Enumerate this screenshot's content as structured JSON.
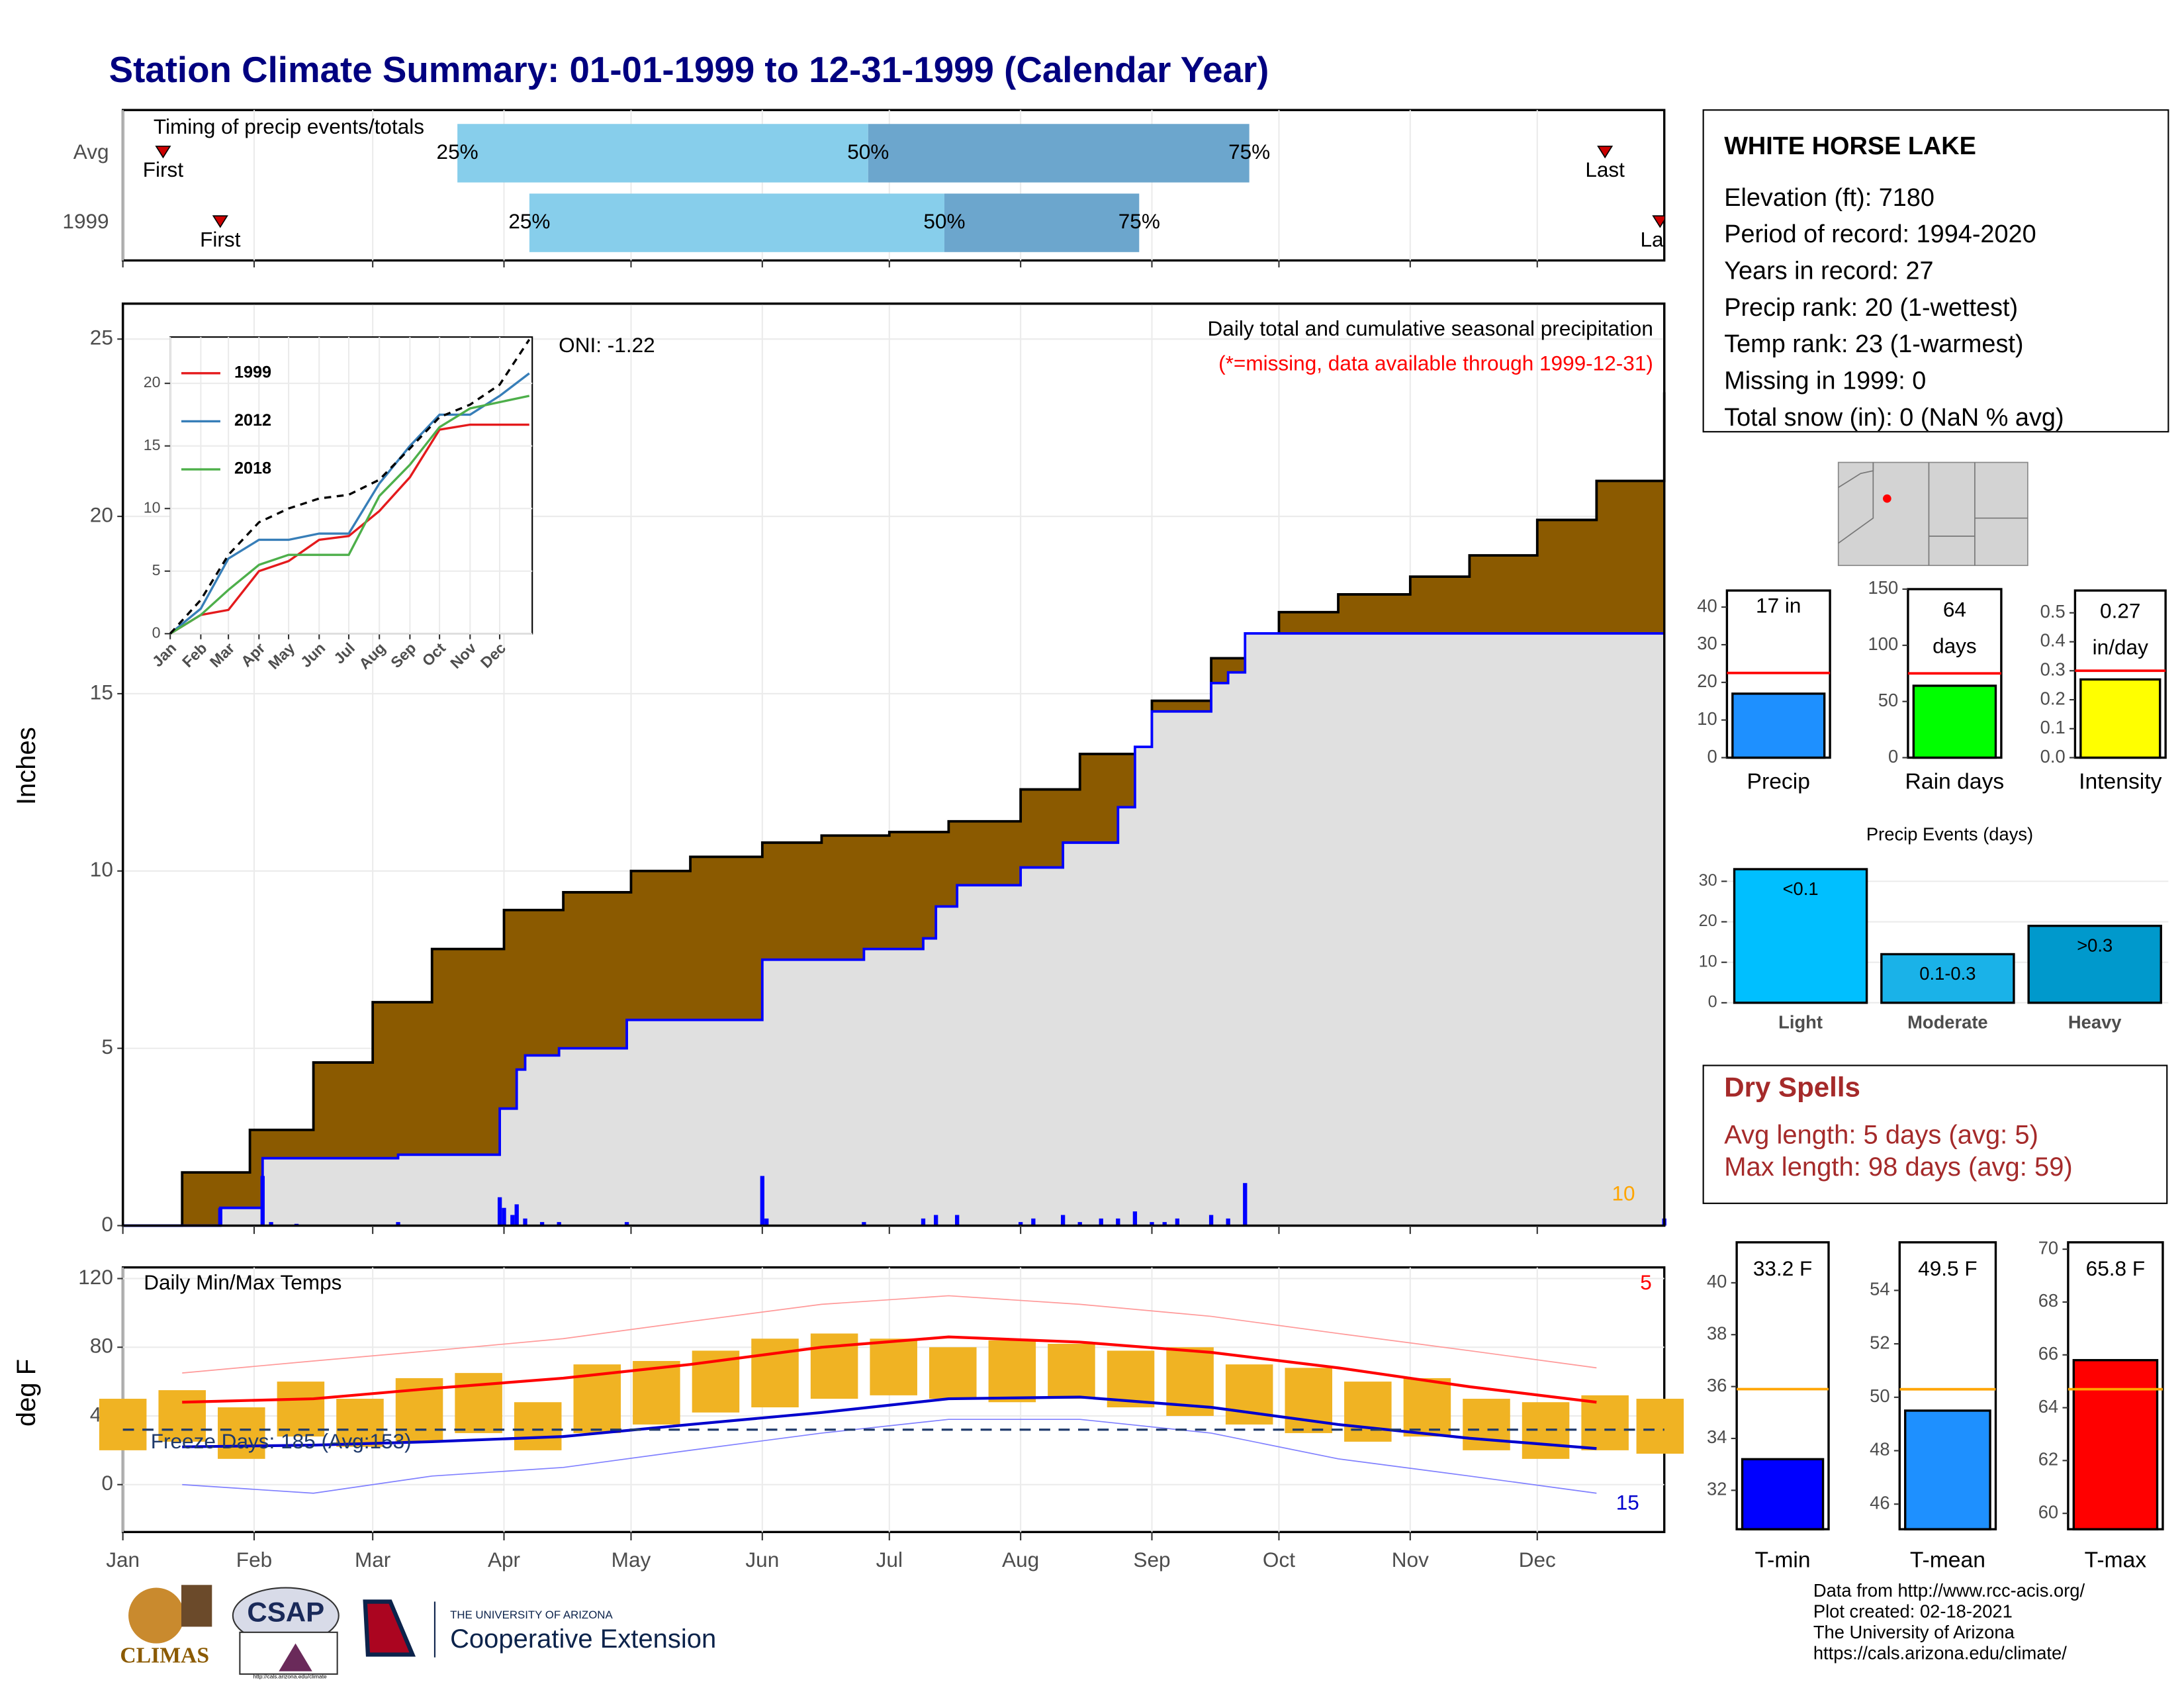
{
  "title": "Station Climate Summary: 01-01-1999 to 12-31-1999 (Calendar Year)",
  "chart_data": [
    {
      "type": "timing",
      "subtitle": "Timing of precip events/totals",
      "categories": [
        "Avg",
        "1999"
      ],
      "xlim": [
        1,
        365
      ],
      "first": [
        10.5,
        24
      ],
      "q25": [
        80,
        97
      ],
      "q50": [
        177,
        195
      ],
      "q75": [
        267,
        241
      ],
      "last": [
        351,
        364
      ],
      "labels": {
        "first": "First",
        "q25": "25%",
        "q50": "50%",
        "q75": "75%",
        "last": "Last"
      },
      "colors": {
        "early": "#87ceeb",
        "late": "#6ca6cd",
        "marker": "#cc0000"
      }
    },
    {
      "type": "cumulative",
      "ylabel": "Inches",
      "title": "Daily total and cumulative seasonal precipitation",
      "subtitle": "(*=missing, data available through 1999-12-31)",
      "annotation": "ONI: -1.22",
      "corner_label": "10",
      "xlim": [
        1,
        365
      ],
      "ylim": [
        0,
        26
      ],
      "yticks": [
        0,
        5,
        10,
        15,
        20,
        25
      ],
      "grid": true,
      "series": [
        {
          "x": [
            1,
            15,
            31,
            46,
            60,
            74,
            91,
            105,
            121,
            135,
            152,
            166,
            182,
            196,
            213,
            227,
            244,
            258,
            274,
            288,
            305,
            319,
            335,
            349,
            365
          ],
          "values": [
            0,
            1.5,
            2.7,
            4.6,
            6.3,
            7.8,
            8.9,
            9.4,
            10.0,
            10.4,
            10.8,
            11.0,
            11.1,
            11.4,
            12.3,
            13.3,
            14.8,
            16.0,
            17.3,
            17.8,
            18.3,
            18.9,
            19.9,
            21.0,
            23.5
          ],
          "color": "#8b5a00",
          "line": "#000000"
        },
        {
          "x": [
            1,
            24,
            34,
            66,
            90,
            94,
            96,
            104,
            120,
            152,
            176,
            190,
            193,
            198,
            213,
            223,
            236,
            240,
            244,
            258,
            262,
            266,
            365
          ],
          "values": [
            0,
            0.5,
            1.9,
            2.0,
            3.3,
            4.4,
            4.8,
            5.0,
            5.8,
            7.5,
            7.8,
            8.1,
            9.0,
            9.6,
            10.1,
            10.8,
            11.8,
            13.5,
            14.5,
            15.3,
            15.6,
            16.7,
            16.7
          ],
          "color": "#e0e0e0",
          "line": "#0000ff"
        }
      ],
      "daily": {
        "x": [
          24,
          34,
          36,
          42,
          66,
          90,
          91,
          93,
          94,
          96,
          100,
          104,
          120,
          152,
          153,
          176,
          190,
          193,
          198,
          213,
          216,
          223,
          227,
          232,
          236,
          240,
          244,
          247,
          250,
          258,
          262,
          266,
          365
        ],
        "values": [
          0.5,
          1.4,
          0.1,
          0.05,
          0.1,
          0.8,
          0.5,
          0.3,
          0.6,
          0.2,
          0.1,
          0.1,
          0.1,
          1.4,
          0.2,
          0.1,
          0.2,
          0.3,
          0.3,
          0.1,
          0.2,
          0.3,
          0.1,
          0.2,
          0.2,
          0.4,
          0.1,
          0.1,
          0.2,
          0.3,
          0.2,
          1.2,
          0.2
        ],
        "color": "#0000ff"
      }
    },
    {
      "type": "line",
      "xlim": [
        1,
        368
      ],
      "ylim": [
        0,
        23.7
      ],
      "yticks": [
        0,
        5,
        10,
        15,
        20
      ],
      "xticks": [
        {
          "value": 1,
          "label": "Jan"
        },
        {
          "value": 32,
          "label": "Feb"
        },
        {
          "value": 60,
          "label": "Mar"
        },
        {
          "value": 91,
          "label": "Apr"
        },
        {
          "value": 121,
          "label": "May"
        },
        {
          "value": 152,
          "label": "Jun"
        },
        {
          "value": 182,
          "label": "Jul"
        },
        {
          "value": 213,
          "label": "Aug"
        },
        {
          "value": 244,
          "label": "Sep"
        },
        {
          "value": 274,
          "label": "Oct"
        },
        {
          "value": 305,
          "label": "Nov"
        },
        {
          "value": 335,
          "label": "Dec"
        }
      ],
      "x": [
        1,
        32,
        60,
        91,
        121,
        152,
        182,
        213,
        244,
        274,
        305,
        335,
        365
      ],
      "series": [
        {
          "name": "1999",
          "color": "#e41a1c",
          "values": [
            0,
            1.5,
            1.9,
            5.0,
            5.8,
            7.5,
            7.8,
            9.8,
            12.5,
            16.3,
            16.7,
            16.7,
            16.7
          ]
        },
        {
          "name": "2012",
          "color": "#377eb8",
          "values": [
            0,
            2,
            6,
            7.5,
            7.5,
            8,
            8,
            12,
            15,
            17.5,
            17.5,
            19,
            20.8
          ]
        },
        {
          "name": "2018",
          "color": "#4daf4a",
          "values": [
            0,
            1.5,
            3.5,
            5.5,
            6.3,
            6.3,
            6.3,
            11,
            13.5,
            16.5,
            18,
            18.5,
            19
          ]
        },
        {
          "color": "#000000",
          "dash": true,
          "values": [
            0,
            2.7,
            6.3,
            8.9,
            10.0,
            10.8,
            11.1,
            12.3,
            14.8,
            17.3,
            18.3,
            19.9,
            23.5
          ]
        }
      ]
    },
    {
      "type": "temperature",
      "ylabel": "deg F",
      "title": "Daily Min/Max Temps",
      "freeze_label": "Freeze Days: 185 (Avg:153)",
      "freeze_line": 32,
      "high_label": "5",
      "low_label": "15",
      "xlim": [
        1,
        365
      ],
      "ylim": [
        -27.6,
        126.5
      ],
      "yticks": [
        0,
        40,
        80,
        120
      ],
      "grid": true,
      "xticks": [
        {
          "value": 1,
          "label": "Jan"
        },
        {
          "value": 32,
          "label": "Feb"
        },
        {
          "value": 60,
          "label": "Mar"
        },
        {
          "value": 91,
          "label": "Apr"
        },
        {
          "value": 121,
          "label": "May"
        },
        {
          "value": 152,
          "label": "Jun"
        },
        {
          "value": 182,
          "label": "Jul"
        },
        {
          "value": 213,
          "label": "Aug"
        },
        {
          "value": 244,
          "label": "Sep"
        },
        {
          "value": 274,
          "label": "Oct"
        },
        {
          "value": 305,
          "label": "Nov"
        },
        {
          "value": 335,
          "label": "Dec"
        }
      ],
      "observed": {
        "x": [
          1,
          15,
          29,
          43,
          57,
          71,
          85,
          99,
          113,
          127,
          141,
          155,
          169,
          183,
          197,
          211,
          225,
          239,
          253,
          267,
          281,
          295,
          309,
          323,
          337,
          351,
          364
        ],
        "max": [
          50,
          55,
          45,
          60,
          50,
          62,
          65,
          48,
          70,
          72,
          78,
          85,
          88,
          85,
          80,
          84,
          82,
          78,
          80,
          70,
          68,
          60,
          62,
          50,
          48,
          52,
          50
        ],
        "min": [
          20,
          25,
          15,
          28,
          22,
          25,
          30,
          20,
          30,
          35,
          42,
          45,
          50,
          52,
          50,
          48,
          50,
          45,
          40,
          35,
          30,
          25,
          28,
          20,
          15,
          20,
          18
        ],
        "color": "#f0b323"
      },
      "series": [
        {
          "x": [
            15,
            46,
            74,
            105,
            135,
            166,
            196,
            227,
            258,
            288,
            319,
            349
          ],
          "values": [
            48,
            50,
            56,
            62,
            70,
            80,
            86,
            83,
            77,
            68,
            57,
            48
          ],
          "color": "#ff0000",
          "width": 2
        },
        {
          "x": [
            15,
            46,
            74,
            105,
            135,
            166,
            196,
            227,
            258,
            288,
            319,
            349
          ],
          "values": [
            22,
            23,
            25,
            28,
            35,
            42,
            50,
            51,
            45,
            35,
            27,
            21
          ],
          "color": "#0000cd",
          "width": 2
        },
        {
          "x": [
            15,
            46,
            74,
            105,
            135,
            166,
            196,
            227,
            258,
            288,
            319,
            349
          ],
          "values": [
            65,
            72,
            78,
            85,
            95,
            105,
            110,
            105,
            98,
            88,
            78,
            68
          ],
          "color": "#ff9999",
          "width": 0.8
        },
        {
          "x": [
            15,
            46,
            74,
            105,
            135,
            166,
            196,
            227,
            258,
            288,
            319,
            349
          ],
          "values": [
            0,
            -5,
            5,
            10,
            20,
            30,
            38,
            38,
            30,
            15,
            5,
            -5
          ],
          "color": "#8080ff",
          "width": 0.8
        }
      ]
    },
    {
      "type": "gauge",
      "label": "Precip",
      "values": [
        17
      ],
      "value_labels": [
        "17 in"
      ],
      "average": 22.5,
      "ylim": [
        0,
        44.4
      ],
      "yticks": [
        0,
        10,
        20,
        30,
        40
      ],
      "color": "#1e90ff",
      "avg_color": "#ff0000"
    },
    {
      "type": "gauge",
      "label": "Rain days",
      "values": [
        64
      ],
      "value_labels": [
        "64 days"
      ],
      "average": 75,
      "ylim": [
        0,
        150
      ],
      "yticks": [
        0,
        50,
        100,
        150
      ],
      "color": "#00ff00",
      "avg_color": "#ff0000"
    },
    {
      "type": "gauge",
      "label": "Intensity",
      "values": [
        0.27
      ],
      "value_labels": [
        "0.27 in/day"
      ],
      "average": 0.3,
      "ylim": [
        0,
        0.577
      ],
      "yticks": [
        {
          "value": 0,
          "label": "0.0"
        },
        0.1,
        0.2,
        0.3,
        0.4,
        0.5
      ],
      "color": "#ffff00",
      "avg_color": "#ff0000"
    },
    {
      "type": "bar",
      "title": "Precip Events (days)",
      "categories": [
        "Light",
        "Moderate",
        "Heavy"
      ],
      "bin_labels": [
        "<0.1",
        "0.1-0.3",
        ">0.3"
      ],
      "values": [
        33,
        12,
        19
      ],
      "colors": [
        "#00bfff",
        "#1ab2e8",
        "#0099cc"
      ],
      "ylim": [
        0,
        34.4
      ],
      "yticks": [
        0,
        10,
        20,
        30
      ],
      "grid": true
    },
    {
      "type": "gauge",
      "label": "T-min",
      "values": [
        33.2
      ],
      "value_labels": [
        "33.2 F"
      ],
      "average": 35.9,
      "ylim": [
        30.5,
        41.56
      ],
      "yticks": [
        32,
        34,
        36,
        38,
        40
      ],
      "color": "#0000ff",
      "avg_color": "#ffa500"
    },
    {
      "type": "gauge",
      "label": "T-mean",
      "values": [
        49.5
      ],
      "value_labels": [
        "49.5 F"
      ],
      "average": 50.3,
      "ylim": [
        45.06,
        55.8
      ],
      "yticks": [
        46,
        48,
        50,
        52,
        54
      ],
      "color": "#1e90ff",
      "avg_color": "#ffa500"
    },
    {
      "type": "gauge",
      "label": "T-max",
      "values": [
        65.8
      ],
      "value_labels": [
        "65.8 F"
      ],
      "average": 64.7,
      "ylim": [
        59.4,
        70.26
      ],
      "yticks": [
        60,
        62,
        64,
        66,
        68,
        70
      ],
      "color": "#ff0000",
      "avg_color": "#ffa500"
    }
  ],
  "station": {
    "name": "WHITE HORSE LAKE",
    "lines": [
      "Elevation (ft): 7180",
      "Period of record: 1994-2020",
      "Years in record: 27",
      "Precip rank: 20 (1-wettest)",
      "Temp rank: 23 (1-warmest)",
      "Missing in 1999: 0",
      "Total snow (in): 0 (NaN % avg)"
    ]
  },
  "dry_spells": {
    "title": "Dry Spells",
    "lines": [
      "Avg length: 5 days (avg: 5)",
      "Max length: 98 days (avg: 59)"
    ]
  },
  "footer": [
    "Data from http://www.rcc-acis.org/",
    "Plot created: 02-18-2021",
    "The University of Arizona",
    "https://cals.arizona.edu/climate/"
  ],
  "logos": {
    "climas": "CLIMAS",
    "csap": "CSAP",
    "csap_url": "http://cals.arizona.edu/climate",
    "university": "THE UNIVERSITY OF ARIZONA",
    "extension": "Cooperative Extension"
  }
}
